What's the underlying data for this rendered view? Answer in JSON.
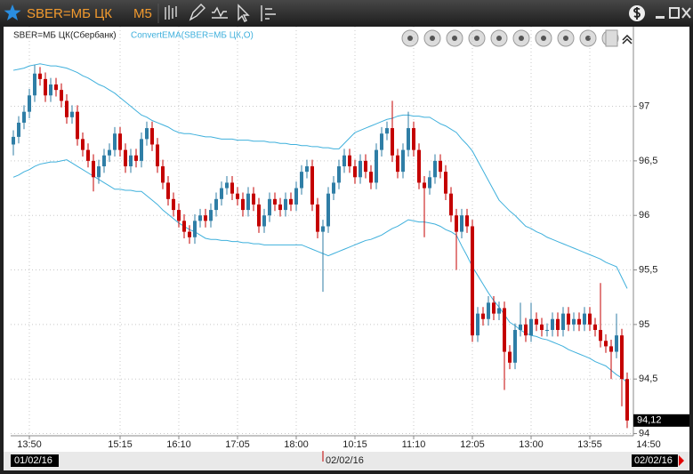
{
  "chart_data": {
    "type": "candlestick",
    "title": "SBER=МБ ЦК",
    "timeframe": "M5",
    "series": [
      {
        "name": "SBER=МБ ЦК(Сбербанк)",
        "up_color": "#2f7ea6",
        "down_color": "#c40000",
        "open": [
          96.65,
          96.72,
          96.85,
          96.95,
          97.1,
          97.3,
          97.25,
          97.1,
          97.2,
          97.15,
          97.05,
          96.9,
          96.95,
          96.7,
          96.6,
          96.5,
          96.35,
          96.45,
          96.55,
          96.6,
          96.75,
          96.6,
          96.45,
          96.55,
          96.5,
          96.7,
          96.8,
          96.65,
          96.45,
          96.3,
          96.15,
          96.05,
          95.95,
          95.85,
          95.8,
          95.95,
          96.0,
          95.95,
          96.05,
          96.15,
          96.25,
          96.3,
          96.2,
          96.15,
          96.05,
          96.2,
          96.1,
          95.9,
          96.0,
          96.15,
          96.1,
          96.05,
          96.15,
          96.1,
          96.25,
          96.4,
          96.45,
          96.1,
          95.85,
          95.9,
          96.2,
          96.3,
          96.45,
          96.55,
          96.45,
          96.35,
          96.5,
          96.4,
          96.3,
          96.6,
          96.75,
          96.8,
          96.55,
          96.4,
          96.6,
          96.8,
          96.6,
          96.3,
          96.25,
          96.35,
          96.5,
          96.4,
          96.2,
          96.0,
          95.85,
          96.0,
          95.9,
          94.9,
          95.1,
          95.05,
          95.2,
          95.1,
          95.15,
          94.75,
          94.65,
          94.95,
          95.0,
          94.9,
          95.05,
          95.0,
          94.95,
          94.95,
          95.05,
          94.95,
          95.1,
          95.0,
          95.05,
          95.0,
          95.1,
          95.0,
          94.95,
          94.85,
          94.8,
          94.75,
          94.9,
          94.5
        ],
        "high": [
          96.78,
          96.91,
          97.01,
          97.16,
          97.38,
          97.36,
          97.31,
          97.26,
          97.26,
          97.21,
          97.11,
          97.01,
          97.01,
          96.76,
          96.66,
          96.56,
          96.51,
          96.61,
          96.66,
          96.81,
          96.81,
          96.66,
          96.61,
          96.61,
          96.76,
          96.86,
          96.86,
          96.71,
          96.51,
          96.36,
          96.21,
          96.11,
          96.01,
          95.91,
          96.01,
          96.06,
          96.06,
          96.11,
          96.21,
          96.31,
          96.36,
          96.36,
          96.26,
          96.21,
          96.26,
          96.26,
          96.16,
          96.06,
          96.21,
          96.21,
          96.16,
          96.21,
          96.21,
          96.31,
          96.46,
          96.51,
          96.51,
          96.16,
          95.96,
          96.26,
          96.36,
          96.51,
          96.61,
          96.61,
          96.51,
          96.56,
          96.56,
          96.46,
          96.66,
          96.81,
          96.86,
          97.05,
          96.61,
          96.66,
          96.95,
          96.86,
          96.66,
          96.36,
          96.41,
          96.56,
          96.56,
          96.46,
          96.26,
          96.06,
          96.06,
          96.06,
          95.96,
          95.16,
          95.16,
          95.26,
          95.26,
          95.21,
          95.21,
          94.81,
          95.01,
          95.2,
          95.06,
          95.2,
          95.11,
          95.06,
          95.01,
          95.11,
          95.11,
          95.16,
          95.16,
          95.11,
          95.11,
          95.16,
          95.16,
          95.06,
          95.38,
          94.91,
          94.86,
          95.1,
          94.96,
          94.56
        ],
        "low": [
          96.55,
          96.66,
          96.79,
          96.89,
          97.04,
          97.19,
          97.04,
          97.04,
          97.09,
          96.99,
          96.84,
          96.84,
          96.64,
          96.54,
          96.44,
          96.22,
          96.29,
          96.39,
          96.49,
          96.54,
          96.54,
          96.39,
          96.39,
          96.44,
          96.44,
          96.64,
          96.59,
          96.39,
          96.24,
          96.09,
          95.99,
          95.89,
          95.79,
          95.74,
          95.74,
          95.89,
          95.89,
          95.89,
          95.99,
          96.09,
          96.19,
          96.14,
          96.09,
          95.99,
          95.99,
          96.04,
          95.84,
          95.84,
          95.94,
          96.04,
          95.99,
          95.99,
          96.04,
          96.04,
          96.19,
          96.34,
          96.04,
          95.79,
          95.3,
          95.84,
          96.14,
          96.24,
          96.39,
          96.39,
          96.29,
          96.29,
          96.34,
          96.24,
          96.24,
          96.54,
          96.69,
          96.49,
          96.34,
          96.34,
          96.54,
          96.54,
          96.24,
          95.8,
          96.19,
          96.29,
          96.34,
          96.14,
          95.94,
          95.5,
          95.79,
          95.84,
          94.84,
          94.84,
          94.99,
          94.99,
          95.04,
          95.04,
          94.4,
          94.59,
          94.59,
          94.89,
          94.84,
          94.84,
          94.94,
          94.89,
          94.89,
          94.89,
          94.89,
          94.89,
          94.94,
          94.94,
          94.94,
          94.94,
          94.94,
          94.89,
          94.79,
          94.74,
          94.5,
          94.69,
          94.25,
          94.05
        ],
        "close": [
          96.72,
          96.85,
          96.95,
          97.1,
          97.3,
          97.25,
          97.1,
          97.2,
          97.15,
          97.05,
          96.9,
          96.95,
          96.7,
          96.6,
          96.5,
          96.35,
          96.45,
          96.55,
          96.6,
          96.75,
          96.6,
          96.45,
          96.55,
          96.5,
          96.7,
          96.8,
          96.65,
          96.45,
          96.3,
          96.15,
          96.05,
          95.95,
          95.85,
          95.8,
          95.95,
          96.0,
          95.95,
          96.05,
          96.15,
          96.25,
          96.3,
          96.2,
          96.15,
          96.05,
          96.2,
          96.1,
          95.9,
          96.0,
          96.15,
          96.1,
          96.05,
          96.15,
          96.1,
          96.25,
          96.4,
          96.45,
          96.1,
          95.85,
          95.9,
          96.2,
          96.3,
          96.45,
          96.55,
          96.45,
          96.35,
          96.5,
          96.4,
          96.3,
          96.6,
          96.75,
          96.8,
          96.55,
          96.4,
          96.6,
          96.8,
          96.6,
          96.3,
          96.25,
          96.35,
          96.5,
          96.4,
          96.2,
          96.0,
          95.85,
          96.0,
          95.9,
          94.9,
          95.1,
          95.05,
          95.2,
          95.1,
          95.15,
          94.75,
          94.65,
          94.95,
          95.0,
          94.9,
          95.05,
          95.0,
          94.95,
          94.95,
          95.05,
          94.95,
          95.1,
          95.0,
          95.05,
          95.0,
          95.1,
          95.0,
          94.95,
          94.85,
          94.8,
          94.75,
          94.9,
          94.5,
          94.12
        ]
      }
    ],
    "indicator": {
      "name": "ConvertEMA(SBER=МБ ЦК,О)",
      "color": "#3fb0dc",
      "upper": [
        97.33,
        97.34,
        97.35,
        97.37,
        97.38,
        97.39,
        97.38,
        97.37,
        97.37,
        97.36,
        97.35,
        97.33,
        97.31,
        97.28,
        97.26,
        97.23,
        97.2,
        97.18,
        97.15,
        97.12,
        97.08,
        97.04,
        97.0,
        96.96,
        96.92,
        96.9,
        96.87,
        96.85,
        96.83,
        96.81,
        96.78,
        96.76,
        96.75,
        96.75,
        96.74,
        96.73,
        96.72,
        96.72,
        96.71,
        96.7,
        96.7,
        96.7,
        96.69,
        96.69,
        96.69,
        96.68,
        96.68,
        96.68,
        96.67,
        96.67,
        96.66,
        96.66,
        96.65,
        96.65,
        96.64,
        96.64,
        96.63,
        96.63,
        96.62,
        96.62,
        96.61,
        96.61,
        96.66,
        96.71,
        96.76,
        96.78,
        96.8,
        96.82,
        96.84,
        96.86,
        96.88,
        96.89,
        96.91,
        96.92,
        96.92,
        96.91,
        96.91,
        96.9,
        96.9,
        96.87,
        96.84,
        96.82,
        96.79,
        96.76,
        96.7,
        96.65,
        96.59,
        96.5,
        96.41,
        96.32,
        96.23,
        96.14,
        96.09,
        96.04,
        96.0,
        95.95,
        95.9,
        95.88,
        95.85,
        95.83,
        95.8,
        95.78,
        95.76,
        95.74,
        95.72,
        95.7,
        95.68,
        95.66,
        95.64,
        95.62,
        95.6,
        95.57,
        95.55,
        95.53,
        95.43,
        95.33
      ],
      "lower": [
        96.35,
        96.37,
        96.4,
        96.42,
        96.45,
        96.47,
        96.48,
        96.49,
        96.49,
        96.5,
        96.51,
        96.48,
        96.45,
        96.42,
        96.39,
        96.36,
        96.33,
        96.3,
        96.27,
        96.24,
        96.24,
        96.23,
        96.23,
        96.22,
        96.22,
        96.18,
        96.14,
        96.1,
        96.05,
        96.01,
        95.97,
        95.93,
        95.9,
        95.87,
        95.85,
        95.82,
        95.79,
        95.78,
        95.78,
        95.77,
        95.77,
        95.76,
        95.76,
        95.75,
        95.75,
        95.74,
        95.74,
        95.73,
        95.73,
        95.73,
        95.73,
        95.73,
        95.73,
        95.73,
        95.73,
        95.71,
        95.69,
        95.67,
        95.65,
        95.63,
        95.65,
        95.67,
        95.69,
        95.71,
        95.73,
        95.75,
        95.77,
        95.78,
        95.8,
        95.82,
        95.85,
        95.88,
        95.9,
        95.93,
        95.96,
        95.95,
        95.94,
        95.94,
        95.93,
        95.92,
        95.9,
        95.87,
        95.85,
        95.82,
        95.72,
        95.63,
        95.53,
        95.45,
        95.37,
        95.29,
        95.22,
        95.16,
        95.09,
        95.02,
        94.99,
        94.95,
        94.92,
        94.9,
        94.89,
        94.87,
        94.86,
        94.84,
        94.82,
        94.8,
        94.77,
        94.75,
        94.73,
        94.71,
        94.69,
        94.66,
        94.64,
        94.62,
        94.58,
        94.54,
        94.51,
        94.47
      ]
    },
    "categories": [
      null,
      null,
      null,
      "13:50",
      null,
      null,
      null,
      null,
      null,
      null,
      null,
      null,
      null,
      null,
      null,
      null,
      null,
      null,
      null,
      null,
      "15:15",
      null,
      null,
      null,
      null,
      null,
      null,
      null,
      null,
      null,
      null,
      "16:10",
      null,
      null,
      null,
      null,
      null,
      null,
      null,
      null,
      null,
      null,
      "17:05",
      null,
      null,
      null,
      null,
      null,
      null,
      null,
      null,
      null,
      null,
      "18:00",
      null,
      null,
      null,
      null,
      null,
      null,
      null,
      null,
      null,
      null,
      "10:15",
      null,
      null,
      null,
      null,
      null,
      null,
      null,
      null,
      null,
      null,
      "11:10",
      null,
      null,
      null,
      null,
      null,
      null,
      null,
      null,
      null,
      null,
      "12:05",
      null,
      null,
      null,
      null,
      null,
      null,
      null,
      null,
      null,
      null,
      "13:00",
      null,
      null,
      null,
      null,
      null,
      null,
      null,
      null,
      null,
      null,
      "13:55",
      null,
      null,
      null,
      null,
      null,
      null,
      null
    ],
    "axis_end_label": "14:50",
    "date_labels": [
      "01/02/16",
      "02/02/16",
      "02/02/16"
    ],
    "last_price": {
      "value": 94.12,
      "label": "94,12"
    },
    "ylim": [
      93.98,
      97.73
    ],
    "yticks": [
      {
        "value": 94,
        "label": "94"
      },
      {
        "value": 94.5,
        "label": "94,5"
      },
      95,
      {
        "value": 95.5,
        "label": "95,5"
      },
      96,
      {
        "value": 96.5,
        "label": "96,5"
      },
      97
    ],
    "grid": true
  }
}
